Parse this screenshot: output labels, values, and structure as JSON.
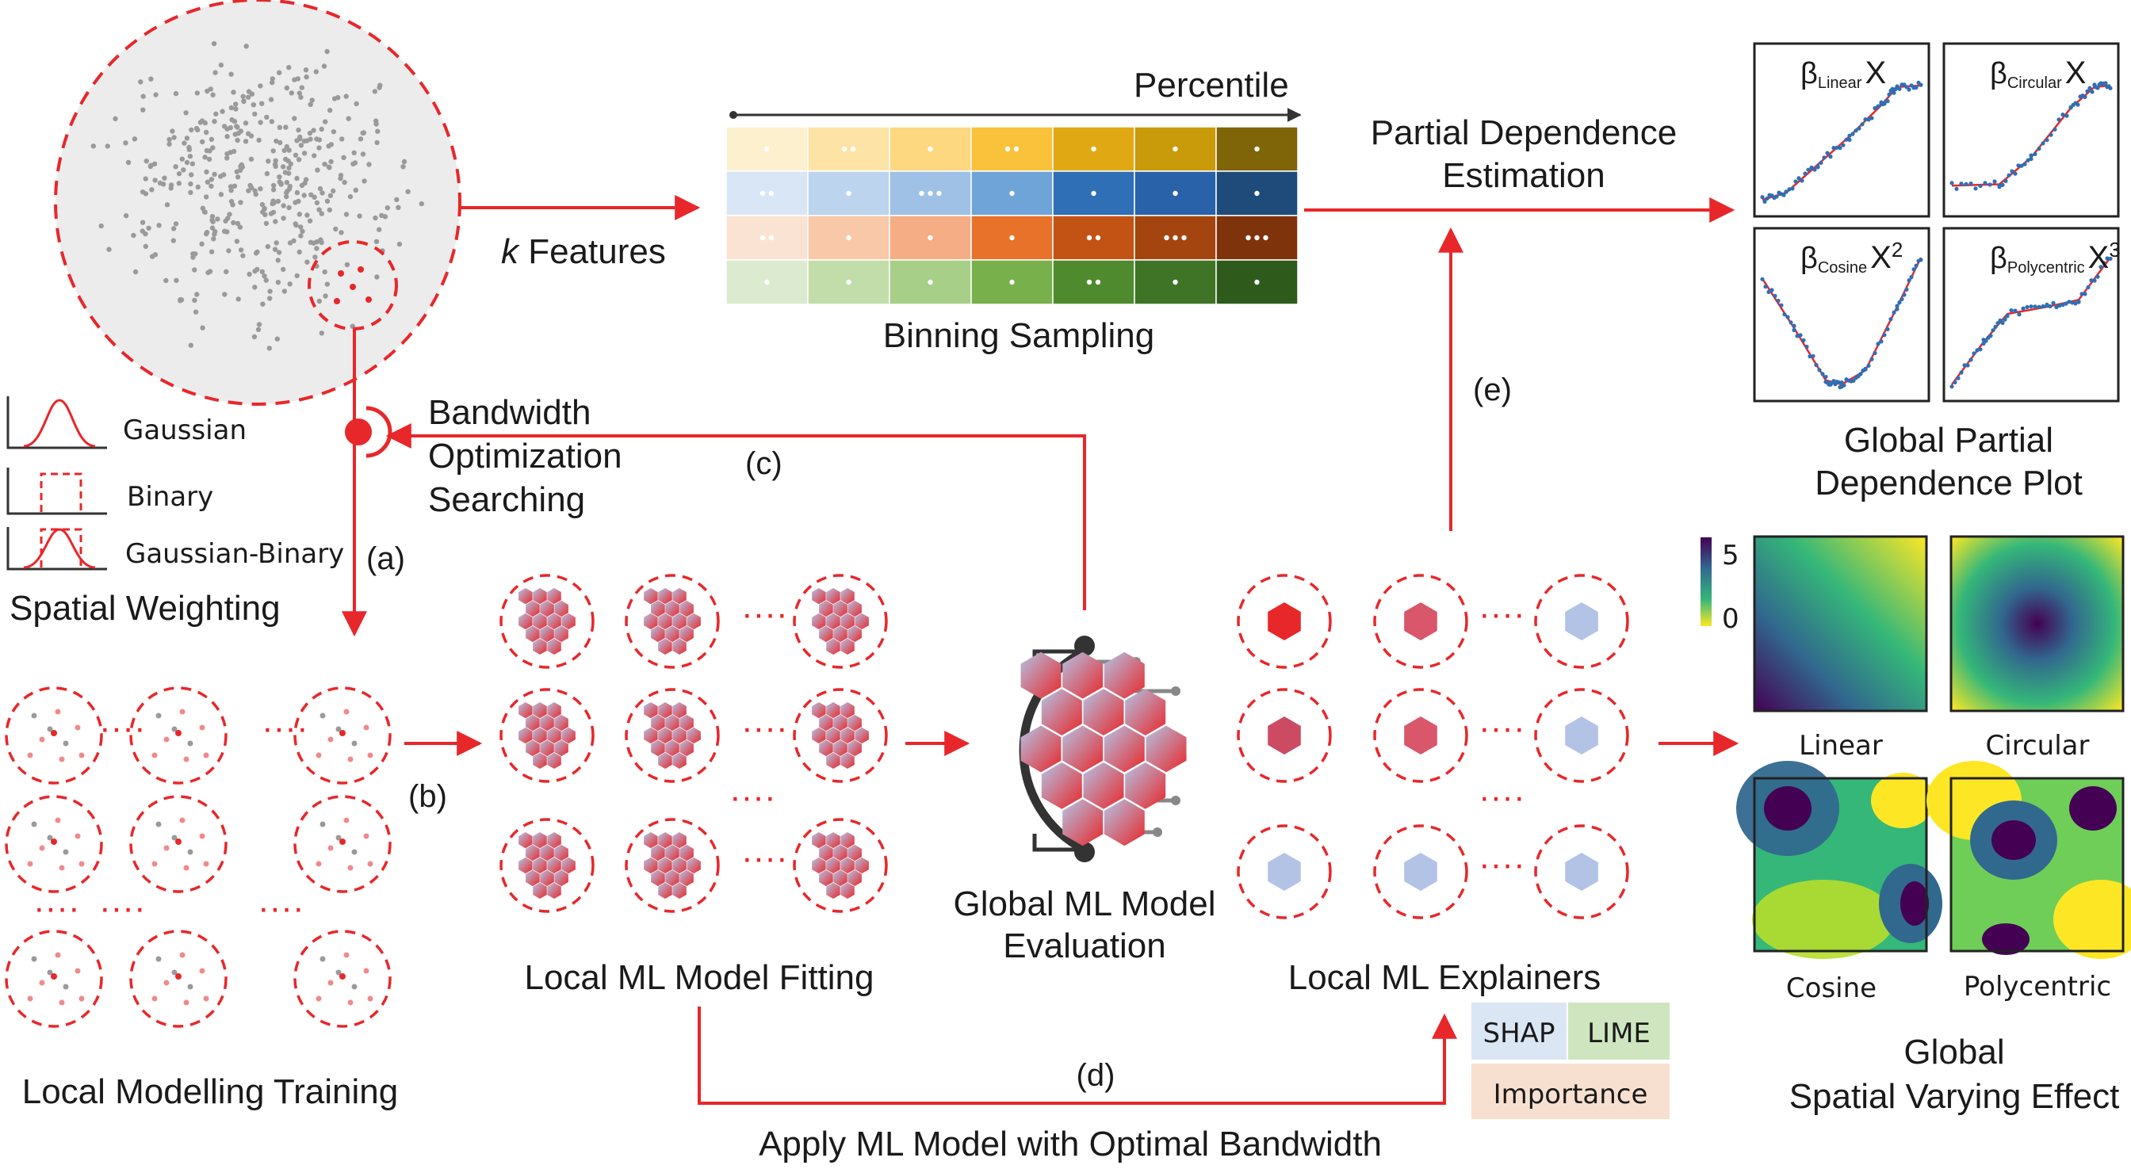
{
  "colors": {
    "accent_red": "#e8272a",
    "dash_red": "#e8272a",
    "gray_point": "#9a9a9a",
    "hex_blue": "#b3c3e6",
    "hex_red": "#e8272a",
    "shap_bg": "#dbe6f4",
    "lime_bg": "#cfe5c0",
    "importance_bg": "#f8e0d0"
  },
  "top": {
    "k_features_italic": "k",
    "k_features_rest": " Features",
    "percentile": "Percentile",
    "binning_sampling": "Binning Sampling",
    "partial_dependence": [
      "Partial Dependence",
      "Estimation"
    ],
    "global_pdp": [
      "Global Partial",
      "Dependence Plot"
    ]
  },
  "weighting": {
    "kernels": [
      "Gaussian",
      "Binary",
      "Gaussian-Binary"
    ],
    "title": "Spatial Weighting",
    "step_a": "(a)"
  },
  "bandwidth": {
    "label": [
      "Bandwidth",
      "Optimization",
      "Searching"
    ],
    "step_c": "(c)"
  },
  "middle": {
    "step_b": "(b)",
    "local_training": "Local Modelling Training",
    "local_fitting": "Local ML Model Fitting",
    "global_eval": [
      "Global ML Model",
      "Evaluation"
    ],
    "local_explainers": "Local ML Explainers",
    "step_d": "(d)",
    "step_e": "(e)",
    "apply_optimal": "Apply ML Model with Optimal Bandwidth",
    "dots": "····"
  },
  "explainer_tags": [
    "SHAP",
    "LIME",
    "Importance"
  ],
  "pdp_plots": [
    {
      "beta": "β",
      "sub": "Linear",
      "term": "X",
      "power": ""
    },
    {
      "beta": "β",
      "sub": "Circular",
      "term": "X",
      "power": ""
    },
    {
      "beta": "β",
      "sub": "Cosine",
      "term": "X",
      "power": "2"
    },
    {
      "beta": "β",
      "sub": "Polycentric",
      "term": "X",
      "power": "3"
    }
  ],
  "colorbar": {
    "max": "5",
    "min": "0"
  },
  "effect_maps": [
    "Linear",
    "Circular",
    "Cosine",
    "Polycentric"
  ],
  "global_effect": [
    "Global",
    "Spatial Varying Effect"
  ],
  "chart_data": [
    {
      "type": "line",
      "title": "",
      "sub": "Linear",
      "series": [
        {
          "values": [
            [
              0,
              0.05
            ],
            [
              0.15,
              0.1
            ],
            [
              0.35,
              0.3
            ],
            [
              0.55,
              0.5
            ],
            [
              0.75,
              0.72
            ],
            [
              0.85,
              0.85
            ],
            [
              1,
              0.86
            ]
          ]
        }
      ]
    },
    {
      "type": "line",
      "title": "",
      "sub": "Circular",
      "series": [
        {
          "values": [
            [
              0,
              0.15
            ],
            [
              0.3,
              0.16
            ],
            [
              0.5,
              0.35
            ],
            [
              0.75,
              0.7
            ],
            [
              0.9,
              0.85
            ],
            [
              1,
              0.86
            ]
          ]
        }
      ]
    },
    {
      "type": "line",
      "title": "",
      "sub": "Cosine",
      "series": [
        {
          "values": [
            [
              0,
              0.8
            ],
            [
              0.2,
              0.45
            ],
            [
              0.4,
              0.08
            ],
            [
              0.5,
              0.05
            ],
            [
              0.65,
              0.15
            ],
            [
              0.85,
              0.6
            ],
            [
              1,
              0.95
            ]
          ]
        }
      ]
    },
    {
      "type": "line",
      "title": "",
      "sub": "Polycentric",
      "series": [
        {
          "values": [
            [
              0,
              0.05
            ],
            [
              0.2,
              0.35
            ],
            [
              0.35,
              0.55
            ],
            [
              0.6,
              0.6
            ],
            [
              0.8,
              0.65
            ],
            [
              1,
              0.95
            ]
          ]
        }
      ]
    }
  ]
}
